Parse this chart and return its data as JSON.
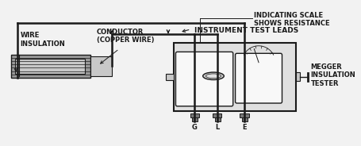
{
  "bg_color": "#f2f2f2",
  "line_color": "#1a1a1a",
  "gray_fill": "#999999",
  "light_gray": "#c8c8c8",
  "dark_gray": "#777777",
  "white": "#ffffff",
  "box_gray": "#e0e0e0",
  "panel_white": "#f8f8f8",
  "label_wire_insulation": "WIRE\nINSULATION",
  "label_conductor": "CONDUCTOR\n(COPPER WIRE)",
  "label_indicating": "INDICATING SCALE\nSHOWS RESISTANCE",
  "label_megger": "MEGGER\nINSULATION\nTESTER",
  "label_test_leads": "INSTRUMENT TEST LEADS",
  "label_G": "G",
  "label_L": "L",
  "label_E": "E",
  "fontsize": 6.0,
  "fontname": "DejaVu Sans"
}
